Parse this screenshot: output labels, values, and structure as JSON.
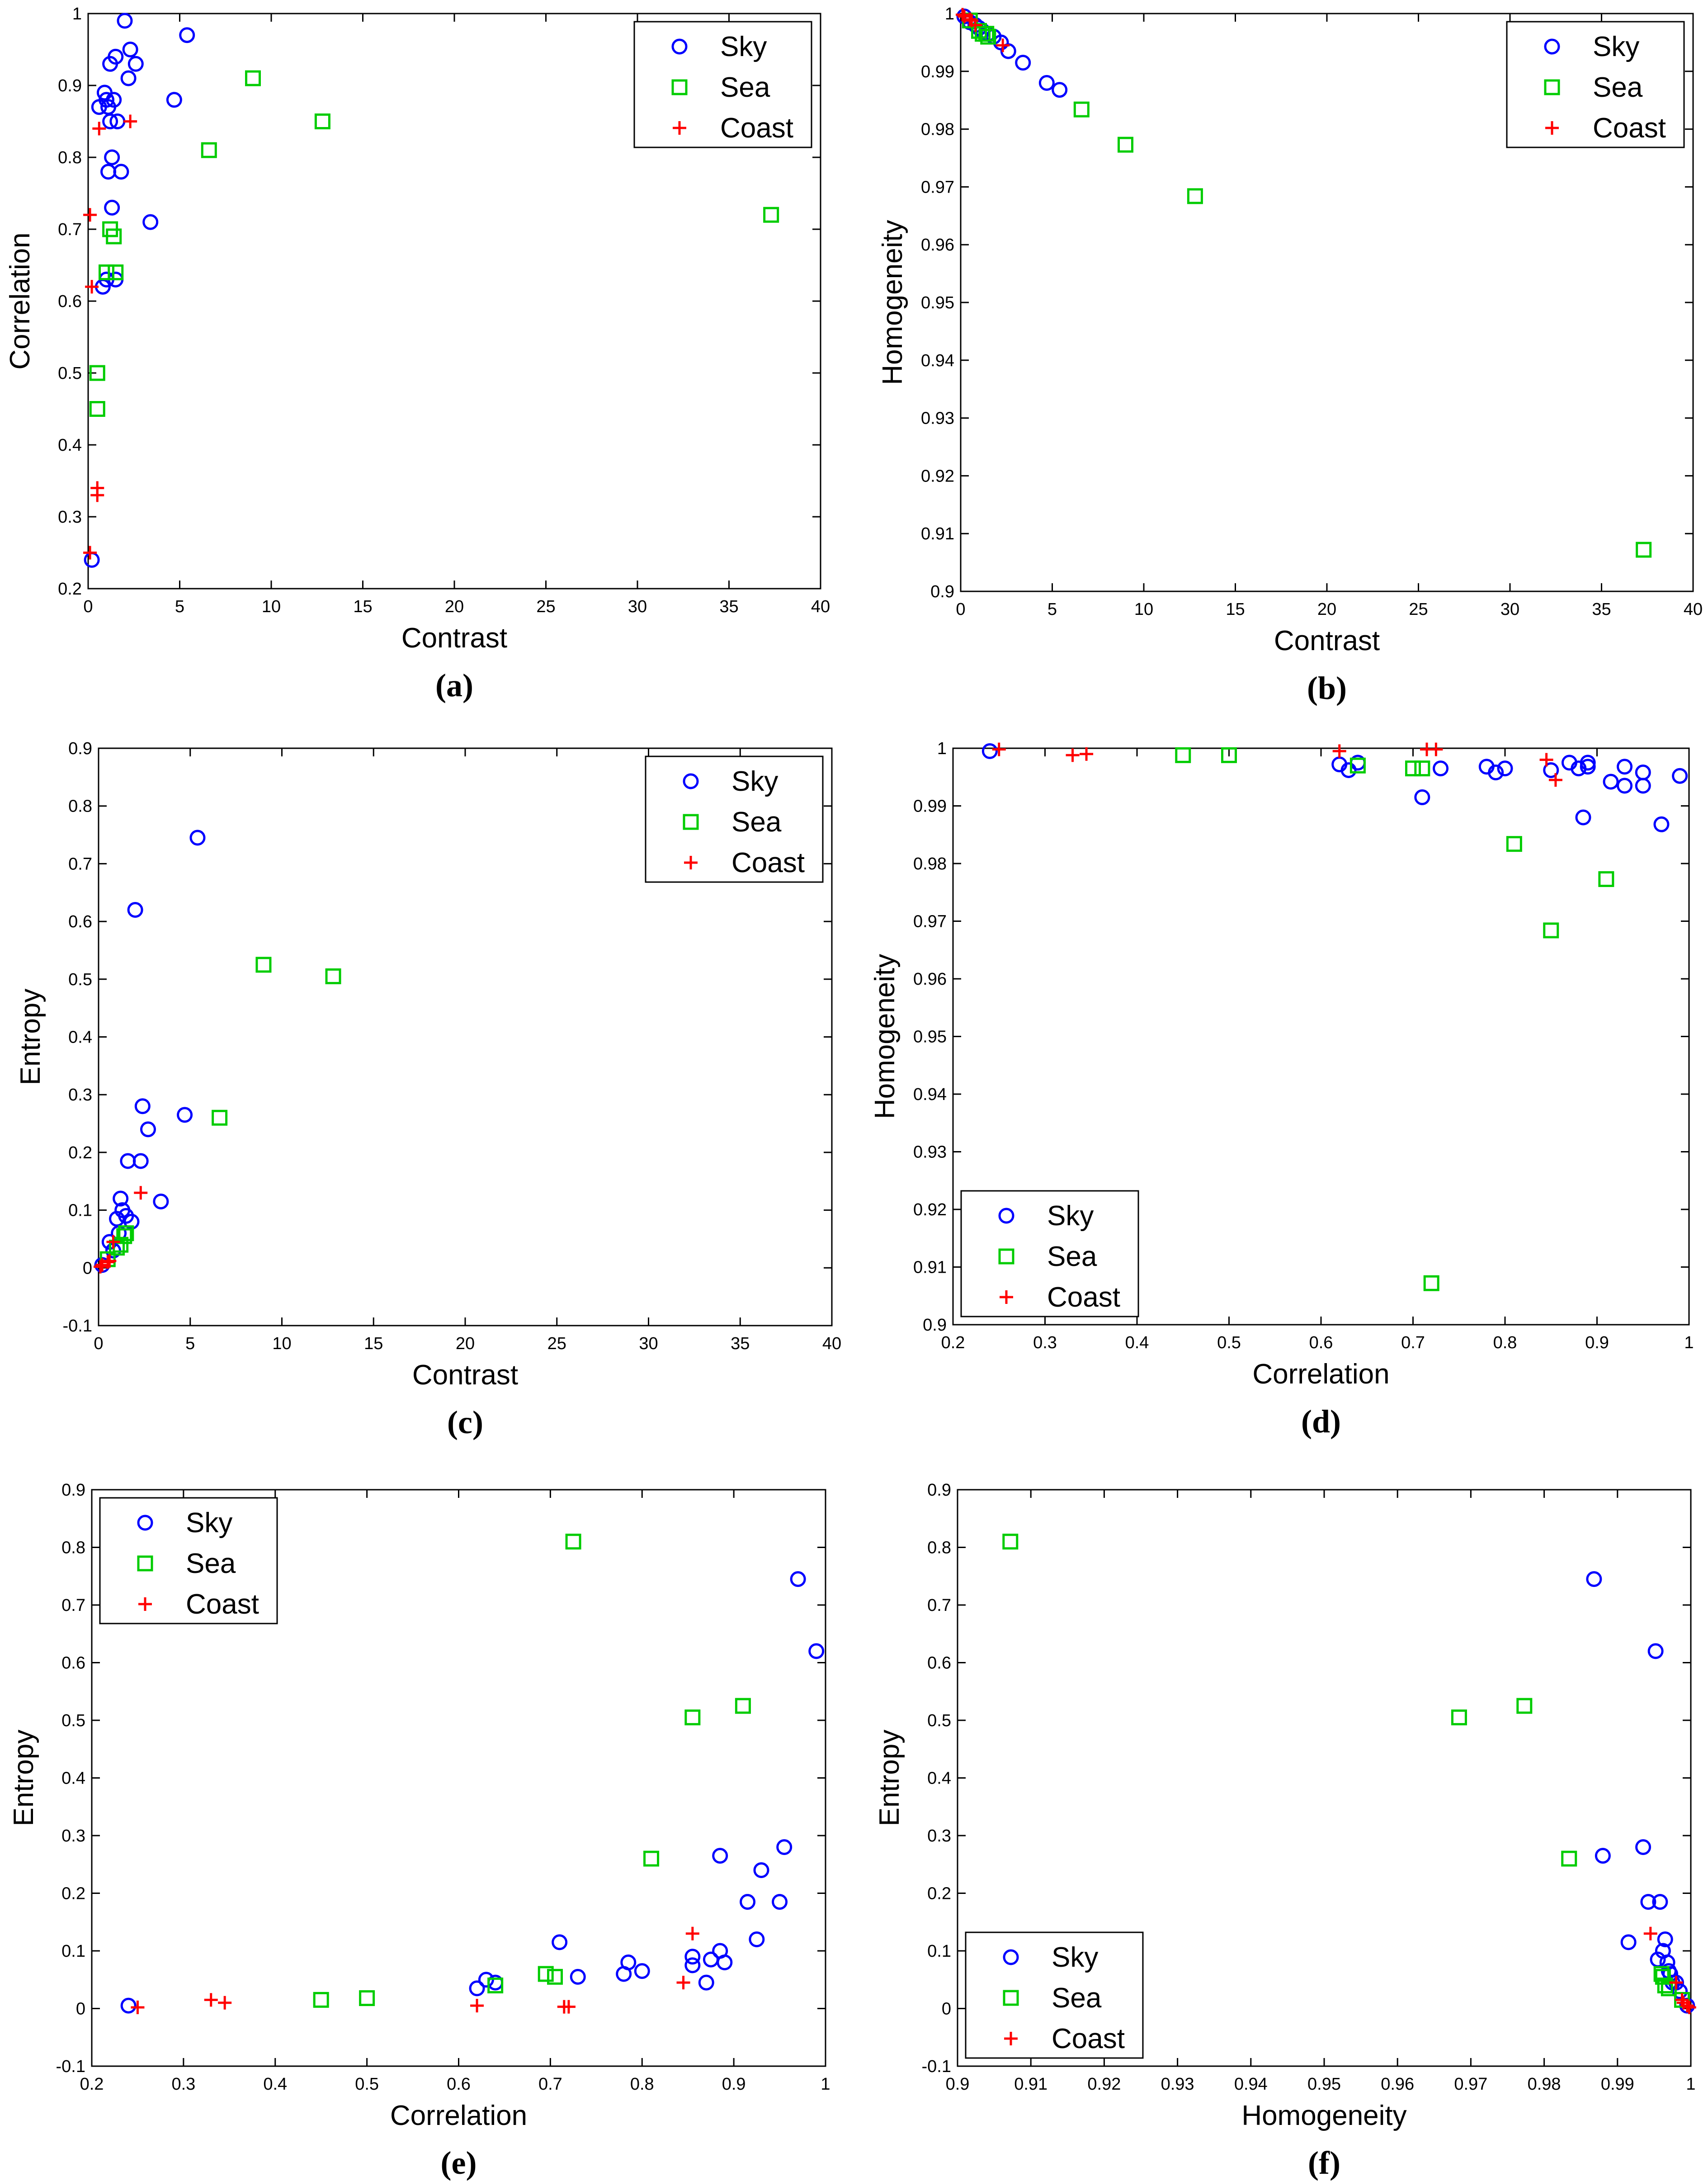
{
  "figure": {
    "series_names": [
      "Sky",
      "Sea",
      "Coast"
    ]
  },
  "colors": {
    "Sky": "#0000ff",
    "Sea": "#00cc00",
    "Coast": "#ff0000"
  },
  "markers": {
    "Sky": "circle",
    "Sea": "square",
    "Coast": "plus"
  },
  "chart_data": [
    {
      "id": "a",
      "panel_label": "(a)",
      "type": "scatter",
      "xlabel": "Contrast",
      "ylabel": "Correlation",
      "xlim": [
        0,
        40
      ],
      "ylim": [
        0.2,
        1
      ],
      "xticks": [
        0,
        5,
        10,
        15,
        20,
        25,
        30,
        35,
        40
      ],
      "xtick_labels": [
        "0",
        "5",
        "10",
        "15",
        "20",
        "25",
        "30",
        "35",
        "40"
      ],
      "yticks": [
        0.2,
        0.3,
        0.4,
        0.5,
        0.6,
        0.7,
        0.8,
        0.9,
        1
      ],
      "ytick_labels": [
        "0.2",
        "0.3",
        "0.4",
        "0.5",
        "0.6",
        "0.7",
        "0.8",
        "0.9",
        "1"
      ],
      "legend": "top-right",
      "series": [
        {
          "name": "Sky",
          "x": [
            0.2,
            0.6,
            0.8,
            0.9,
            1.0,
            1.0,
            1.1,
            1.1,
            1.2,
            1.2,
            1.3,
            1.3,
            1.4,
            1.5,
            1.5,
            1.6,
            1.8,
            2.0,
            2.2,
            2.3,
            2.6,
            3.4,
            4.7,
            5.4
          ],
          "y": [
            0.24,
            0.87,
            0.62,
            0.89,
            0.88,
            0.63,
            0.87,
            0.78,
            0.93,
            0.85,
            0.8,
            0.73,
            0.88,
            0.63,
            0.94,
            0.85,
            0.78,
            0.99,
            0.91,
            0.95,
            0.93,
            0.71,
            0.88,
            0.97
          ]
        },
        {
          "name": "Sea",
          "x": [
            0.5,
            0.5,
            1.0,
            1.2,
            1.4,
            1.5,
            6.6,
            9.0,
            12.8,
            37.3
          ],
          "y": [
            0.45,
            0.5,
            0.64,
            0.7,
            0.69,
            0.64,
            0.81,
            0.91,
            0.85,
            0.72
          ]
        },
        {
          "name": "Coast",
          "x": [
            0.1,
            0.1,
            0.2,
            0.5,
            0.5,
            0.6,
            2.3
          ],
          "y": [
            0.25,
            0.72,
            0.62,
            0.34,
            0.33,
            0.84,
            0.85
          ]
        }
      ]
    },
    {
      "id": "b",
      "panel_label": "(b)",
      "type": "scatter",
      "xlabel": "Contrast",
      "ylabel": "Homogeneity",
      "xlim": [
        0,
        40
      ],
      "ylim": [
        0.9,
        1
      ],
      "xticks": [
        0,
        5,
        10,
        15,
        20,
        25,
        30,
        35,
        40
      ],
      "xtick_labels": [
        "0",
        "5",
        "10",
        "15",
        "20",
        "25",
        "30",
        "35",
        "40"
      ],
      "yticks": [
        0.9,
        0.91,
        0.92,
        0.93,
        0.94,
        0.95,
        0.96,
        0.97,
        0.98,
        0.99,
        1
      ],
      "ytick_labels": [
        "0.9",
        "0.91",
        "0.92",
        "0.93",
        "0.94",
        "0.95",
        "0.96",
        "0.97",
        "0.98",
        "0.99",
        "1"
      ],
      "legend": "top-right",
      "series": [
        {
          "name": "Sky",
          "x": [
            0.2,
            0.5,
            0.8,
            1.0,
            1.2,
            1.5,
            1.8,
            2.2,
            2.6,
            3.4,
            4.7,
            5.4
          ],
          "y": [
            0.9995,
            0.9985,
            0.998,
            0.9975,
            0.997,
            0.9965,
            0.996,
            0.995,
            0.9935,
            0.9915,
            0.988,
            0.9868
          ]
        },
        {
          "name": "Sea",
          "x": [
            0.5,
            1.0,
            1.2,
            1.4,
            1.5,
            6.6,
            9.0,
            12.8,
            37.3
          ],
          "y": [
            0.9988,
            0.997,
            0.9965,
            0.9965,
            0.996,
            0.9834,
            0.9773,
            0.9684,
            0.9072
          ]
        },
        {
          "name": "Coast",
          "x": [
            0.1,
            0.2,
            0.5,
            0.6,
            0.8,
            2.3
          ],
          "y": [
            0.9998,
            0.9995,
            0.999,
            0.9988,
            0.998,
            0.9945
          ]
        }
      ]
    },
    {
      "id": "c",
      "panel_label": "(c)",
      "type": "scatter",
      "xlabel": "Contrast",
      "ylabel": "Entropy",
      "xlim": [
        0,
        40
      ],
      "ylim": [
        -0.1,
        0.9
      ],
      "xticks": [
        0,
        5,
        10,
        15,
        20,
        25,
        30,
        35,
        40
      ],
      "xtick_labels": [
        "0",
        "5",
        "10",
        "15",
        "20",
        "25",
        "30",
        "35",
        "40"
      ],
      "yticks": [
        -0.1,
        0,
        0.1,
        0.2,
        0.3,
        0.4,
        0.5,
        0.6,
        0.7,
        0.8,
        0.9
      ],
      "ytick_labels": [
        "-0.1",
        "0",
        "0.1",
        "0.2",
        "0.3",
        "0.4",
        "0.5",
        "0.6",
        "0.7",
        "0.8",
        "0.9"
      ],
      "legend": "top-right",
      "series": [
        {
          "name": "Sky",
          "x": [
            0.2,
            0.6,
            0.8,
            1.0,
            1.1,
            1.2,
            1.3,
            1.5,
            1.6,
            1.8,
            2.0,
            2.3,
            2.4,
            2.7,
            3.4,
            4.7,
            5.4
          ],
          "y": [
            0.005,
            0.045,
            0.03,
            0.085,
            0.06,
            0.12,
            0.1,
            0.09,
            0.185,
            0.08,
            0.62,
            0.185,
            0.28,
            0.24,
            0.115,
            0.265,
            0.745
          ]
        },
        {
          "name": "Sea",
          "x": [
            0.5,
            1.0,
            1.2,
            1.4,
            1.5,
            6.6,
            9.0,
            12.8
          ],
          "y": [
            0.015,
            0.035,
            0.04,
            0.055,
            0.06,
            0.26,
            0.525,
            0.505
          ]
        },
        {
          "name": "Coast",
          "x": [
            0.1,
            0.2,
            0.5,
            0.6,
            0.8,
            2.3
          ],
          "y": [
            0.002,
            0.005,
            0.01,
            0.012,
            0.045,
            0.13
          ]
        }
      ]
    },
    {
      "id": "d",
      "panel_label": "(d)",
      "type": "scatter",
      "xlabel": "Correlation",
      "ylabel": "Homogeneity",
      "xlim": [
        0.2,
        1
      ],
      "ylim": [
        0.9,
        1
      ],
      "xticks": [
        0.2,
        0.3,
        0.4,
        0.5,
        0.6,
        0.7,
        0.8,
        0.9,
        1
      ],
      "xtick_labels": [
        "0.2",
        "0.3",
        "0.4",
        "0.5",
        "0.6",
        "0.7",
        "0.8",
        "0.9",
        "1"
      ],
      "yticks": [
        0.9,
        0.91,
        0.92,
        0.93,
        0.94,
        0.95,
        0.96,
        0.97,
        0.98,
        0.99,
        1
      ],
      "ytick_labels": [
        "0.9",
        "0.91",
        "0.92",
        "0.93",
        "0.94",
        "0.95",
        "0.96",
        "0.97",
        "0.98",
        "0.99",
        "1"
      ],
      "legend": "bottom-left",
      "series": [
        {
          "name": "Sky",
          "x": [
            0.24,
            0.62,
            0.63,
            0.64,
            0.71,
            0.73,
            0.78,
            0.79,
            0.8,
            0.85,
            0.87,
            0.88,
            0.885,
            0.89,
            0.89,
            0.915,
            0.93,
            0.93,
            0.95,
            0.95,
            0.97,
            0.99
          ],
          "y": [
            0.9995,
            0.9972,
            0.9962,
            0.9975,
            0.9915,
            0.9965,
            0.9968,
            0.9958,
            0.9965,
            0.9962,
            0.9975,
            0.9965,
            0.988,
            0.9968,
            0.9975,
            0.9942,
            0.9968,
            0.9935,
            0.9958,
            0.9935,
            0.9868,
            0.9952
          ]
        },
        {
          "name": "Sea",
          "x": [
            0.45,
            0.5,
            0.64,
            0.7,
            0.71,
            0.81,
            0.85,
            0.91,
            0.72
          ],
          "y": [
            0.9988,
            0.9988,
            0.997,
            0.9965,
            0.9965,
            0.9834,
            0.9684,
            0.9773,
            0.9072
          ]
        },
        {
          "name": "Coast",
          "x": [
            0.25,
            0.33,
            0.345,
            0.62,
            0.715,
            0.725,
            0.845,
            0.855
          ],
          "y": [
            0.9998,
            0.9988,
            0.999,
            0.9995,
            0.9998,
            0.9998,
            0.998,
            0.9945
          ]
        }
      ]
    },
    {
      "id": "e",
      "panel_label": "(e)",
      "type": "scatter",
      "xlabel": "Correlation",
      "ylabel": "Entropy",
      "xlim": [
        0.2,
        1
      ],
      "ylim": [
        -0.1,
        0.9
      ],
      "xticks": [
        0.2,
        0.3,
        0.4,
        0.5,
        0.6,
        0.7,
        0.8,
        0.9,
        1
      ],
      "xtick_labels": [
        "0.2",
        "0.3",
        "0.4",
        "0.5",
        "0.6",
        "0.7",
        "0.8",
        "0.9",
        "1"
      ],
      "yticks": [
        -0.1,
        0,
        0.1,
        0.2,
        0.3,
        0.4,
        0.5,
        0.6,
        0.7,
        0.8,
        0.9
      ],
      "ytick_labels": [
        "-0.1",
        "0",
        "0.1",
        "0.2",
        "0.3",
        "0.4",
        "0.5",
        "0.6",
        "0.7",
        "0.8",
        "0.9"
      ],
      "legend": "top-left",
      "series": [
        {
          "name": "Sky",
          "x": [
            0.24,
            0.62,
            0.63,
            0.64,
            0.71,
            0.73,
            0.78,
            0.785,
            0.8,
            0.855,
            0.855,
            0.87,
            0.875,
            0.885,
            0.885,
            0.89,
            0.915,
            0.925,
            0.93,
            0.95,
            0.955,
            0.97,
            0.99
          ],
          "y": [
            0.005,
            0.035,
            0.05,
            0.045,
            0.115,
            0.055,
            0.06,
            0.08,
            0.065,
            0.075,
            0.09,
            0.045,
            0.085,
            0.1,
            0.265,
            0.08,
            0.185,
            0.12,
            0.24,
            0.185,
            0.28,
            0.745,
            0.62
          ]
        },
        {
          "name": "Sea",
          "x": [
            0.45,
            0.5,
            0.64,
            0.695,
            0.705,
            0.725,
            0.81,
            0.855,
            0.91
          ],
          "y": [
            0.015,
            0.018,
            0.04,
            0.06,
            0.055,
            0.81,
            0.26,
            0.505,
            0.525
          ]
        },
        {
          "name": "Coast",
          "x": [
            0.25,
            0.33,
            0.345,
            0.62,
            0.715,
            0.72,
            0.845,
            0.855
          ],
          "y": [
            0.002,
            0.015,
            0.01,
            0.005,
            0.003,
            0.003,
            0.045,
            0.13
          ]
        }
      ]
    },
    {
      "id": "f",
      "panel_label": "(f)",
      "type": "scatter",
      "xlabel": "Homogeneity",
      "ylabel": "Entropy",
      "xlim": [
        0.9,
        1
      ],
      "ylim": [
        -0.1,
        0.9
      ],
      "xticks": [
        0.9,
        0.91,
        0.92,
        0.93,
        0.94,
        0.95,
        0.96,
        0.97,
        0.98,
        0.99,
        1
      ],
      "xtick_labels": [
        "0.9",
        "0.91",
        "0.92",
        "0.93",
        "0.94",
        "0.95",
        "0.96",
        "0.97",
        "0.98",
        "0.99",
        "1"
      ],
      "yticks": [
        -0.1,
        0,
        0.1,
        0.2,
        0.3,
        0.4,
        0.5,
        0.6,
        0.7,
        0.8,
        0.9
      ],
      "ytick_labels": [
        "-0.1",
        "0",
        "0.1",
        "0.2",
        "0.3",
        "0.4",
        "0.5",
        "0.6",
        "0.7",
        "0.8",
        "0.9"
      ],
      "legend": "bottom-left",
      "series": [
        {
          "name": "Sky",
          "x": [
            0.9868,
            0.988,
            0.9915,
            0.9935,
            0.9942,
            0.9952,
            0.9958,
            0.9955,
            0.9962,
            0.9965,
            0.9968,
            0.997,
            0.9972,
            0.9975,
            0.998,
            0.9985,
            0.9995
          ],
          "y": [
            0.745,
            0.265,
            0.115,
            0.28,
            0.185,
            0.62,
            0.185,
            0.085,
            0.1,
            0.12,
            0.08,
            0.065,
            0.06,
            0.045,
            0.045,
            0.03,
            0.005
          ]
        },
        {
          "name": "Sea",
          "x": [
            0.9072,
            0.9684,
            0.9773,
            0.9834,
            0.996,
            0.9962,
            0.9965,
            0.997,
            0.9988
          ],
          "y": [
            0.81,
            0.505,
            0.525,
            0.26,
            0.06,
            0.055,
            0.04,
            0.035,
            0.015
          ]
        },
        {
          "name": "Coast",
          "x": [
            0.9945,
            0.998,
            0.9988,
            0.999,
            0.9995,
            0.9998
          ],
          "y": [
            0.13,
            0.045,
            0.015,
            0.01,
            0.005,
            0.002
          ]
        }
      ]
    }
  ]
}
